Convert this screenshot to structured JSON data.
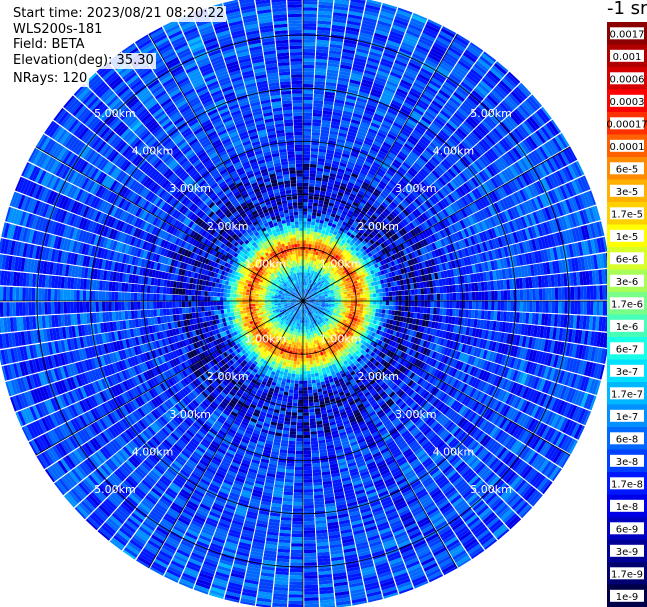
{
  "info": {
    "start_time": "Start time: 2023/08/21 08:20:22",
    "instrument": "WLS200s-181",
    "field": "Field: BETA",
    "elevation": "Elevation(deg): 35.30",
    "nrays": "NRays: 120"
  },
  "colorbar": {
    "title": "-1 sr",
    "labels": [
      "0.0017",
      "0.001",
      "0.0006",
      "0.0003",
      "0.00017",
      "0.0001",
      "6e-5",
      "3e-5",
      "1.7e-5",
      "1e-5",
      "6e-6",
      "3e-6",
      "1.7e-6",
      "1e-6",
      "6e-7",
      "3e-7",
      "1.7e-7",
      "1e-7",
      "6e-8",
      "3e-8",
      "1.7e-8",
      "1e-8",
      "6e-9",
      "3e-9",
      "1.7e-9",
      "1e-9"
    ],
    "colors": [
      "#8b0000",
      "#b00000",
      "#d40000",
      "#ff0000",
      "#ff3000",
      "#ff6000",
      "#ff8c00",
      "#ffb000",
      "#ffd000",
      "#ffff00",
      "#d8ff28",
      "#a8ff58",
      "#78ff88",
      "#48ffb8",
      "#18ffe8",
      "#00e0ff",
      "#00b8ff",
      "#0090ff",
      "#0068ff",
      "#0040ff",
      "#0018ff",
      "#0000e8",
      "#0000c0",
      "#000098",
      "#000070",
      "#000048"
    ]
  },
  "chart_data": {
    "type": "heatmap",
    "projection": "polar (PPI)",
    "title": "",
    "field": "BETA",
    "elevation_deg": 35.3,
    "n_rays": 120,
    "range_ring_labels": [
      "1.00km",
      "2.00km",
      "3.00km",
      "4.00km",
      "5.00km"
    ],
    "range_rings_km": [
      1,
      2,
      3,
      4,
      5
    ],
    "max_range_km": 5.8,
    "spoke_angles_deg": [
      0,
      30,
      60,
      90,
      120,
      150,
      180,
      210,
      240,
      270,
      300,
      330
    ],
    "value_scale": "log",
    "value_range": [
      1e-09,
      0.0017
    ],
    "profile": [
      {
        "range_km": 0.0,
        "log10_beta": -7.2
      },
      {
        "range_km": 0.5,
        "log10_beta": -6.8
      },
      {
        "range_km": 0.85,
        "log10_beta": -4.8
      },
      {
        "range_km": 1.0,
        "log10_beta": -3.9
      },
      {
        "range_km": 1.15,
        "log10_beta": -4.8
      },
      {
        "range_km": 1.4,
        "log10_beta": -6.6
      },
      {
        "range_km": 1.8,
        "log10_beta": -7.8
      },
      {
        "range_km": 2.5,
        "log10_beta": -7.6
      },
      {
        "range_km": 3.5,
        "log10_beta": -7.5
      },
      {
        "range_km": 5.8,
        "log10_beta": -7.4
      }
    ]
  }
}
